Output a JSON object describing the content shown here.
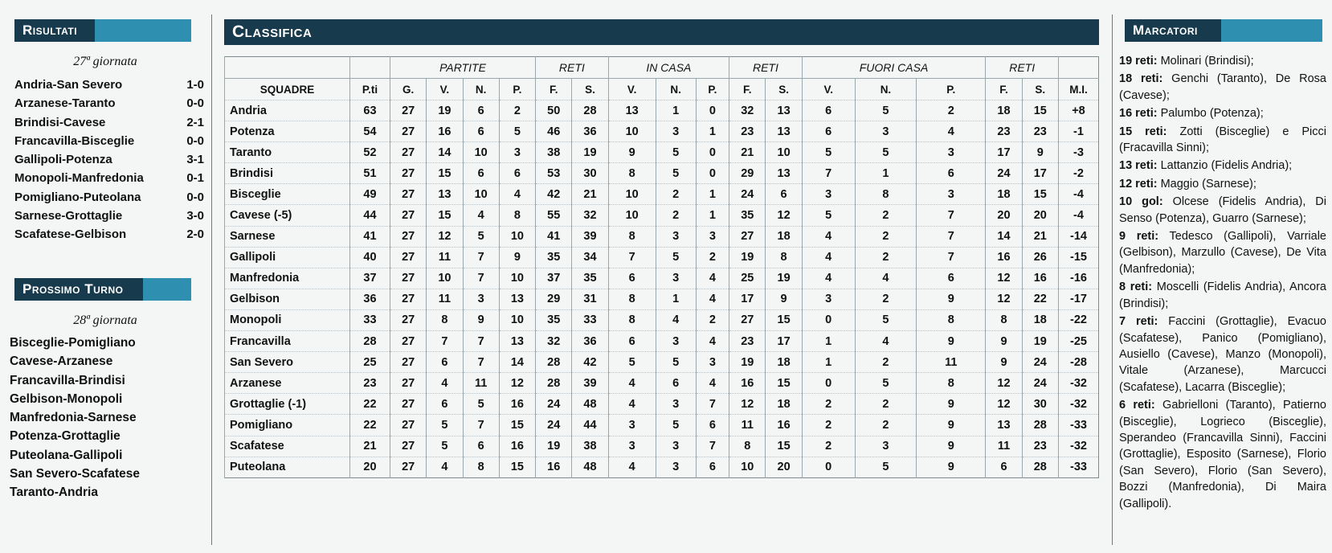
{
  "risultati": {
    "title": "Risultati",
    "giornata": "27ª giornata",
    "matches": [
      {
        "match": "Andria-San Severo",
        "score": "1-0"
      },
      {
        "match": "Arzanese-Taranto",
        "score": "0-0"
      },
      {
        "match": "Brindisi-Cavese",
        "score": "2-1"
      },
      {
        "match": "Francavilla-Bisceglie",
        "score": "0-0"
      },
      {
        "match": "Gallipoli-Potenza",
        "score": "3-1"
      },
      {
        "match": "Monopoli-Manfredonia",
        "score": "0-1"
      },
      {
        "match": "Pomigliano-Puteolana",
        "score": "0-0"
      },
      {
        "match": "Sarnese-Grottaglie",
        "score": "3-0"
      },
      {
        "match": "Scafatese-Gelbison",
        "score": "2-0"
      }
    ]
  },
  "prossimo_turno": {
    "title": "Prossimo Turno",
    "giornata": "28ª giornata",
    "matches": [
      "Bisceglie-Pomigliano",
      "Cavese-Arzanese",
      "Francavilla-Brindisi",
      "Gelbison-Monopoli",
      "Manfredonia-Sarnese",
      "Potenza-Grottaglie",
      "Puteolana-Gallipoli",
      "San Severo-Scafatese",
      "Taranto-Andria"
    ]
  },
  "classifica": {
    "title": "Classifica",
    "group_headers": [
      "PARTITE",
      "RETI",
      "IN CASA",
      "RETI",
      "FUORI CASA",
      "RETI"
    ],
    "columns": [
      "SQUADRE",
      "P.ti",
      "G.",
      "V.",
      "N.",
      "P.",
      "F.",
      "S.",
      "V.",
      "N.",
      "P.",
      "F.",
      "S.",
      "V.",
      "N.",
      "P.",
      "F.",
      "S.",
      "M.I."
    ],
    "rows": [
      [
        "Andria",
        "63",
        "27",
        "19",
        "6",
        "2",
        "50",
        "28",
        "13",
        "1",
        "0",
        "32",
        "13",
        "6",
        "5",
        "2",
        "18",
        "15",
        "+8"
      ],
      [
        "Potenza",
        "54",
        "27",
        "16",
        "6",
        "5",
        "46",
        "36",
        "10",
        "3",
        "1",
        "23",
        "13",
        "6",
        "3",
        "4",
        "23",
        "23",
        "-1"
      ],
      [
        "Taranto",
        "52",
        "27",
        "14",
        "10",
        "3",
        "38",
        "19",
        "9",
        "5",
        "0",
        "21",
        "10",
        "5",
        "5",
        "3",
        "17",
        "9",
        "-3"
      ],
      [
        "Brindisi",
        "51",
        "27",
        "15",
        "6",
        "6",
        "53",
        "30",
        "8",
        "5",
        "0",
        "29",
        "13",
        "7",
        "1",
        "6",
        "24",
        "17",
        "-2"
      ],
      [
        "Bisceglie",
        "49",
        "27",
        "13",
        "10",
        "4",
        "42",
        "21",
        "10",
        "2",
        "1",
        "24",
        "6",
        "3",
        "8",
        "3",
        "18",
        "15",
        "-4"
      ],
      [
        "Cavese (-5)",
        "44",
        "27",
        "15",
        "4",
        "8",
        "55",
        "32",
        "10",
        "2",
        "1",
        "35",
        "12",
        "5",
        "2",
        "7",
        "20",
        "20",
        "-4"
      ],
      [
        "Sarnese",
        "41",
        "27",
        "12",
        "5",
        "10",
        "41",
        "39",
        "8",
        "3",
        "3",
        "27",
        "18",
        "4",
        "2",
        "7",
        "14",
        "21",
        "-14"
      ],
      [
        "Gallipoli",
        "40",
        "27",
        "11",
        "7",
        "9",
        "35",
        "34",
        "7",
        "5",
        "2",
        "19",
        "8",
        "4",
        "2",
        "7",
        "16",
        "26",
        "-15"
      ],
      [
        "Manfredonia",
        "37",
        "27",
        "10",
        "7",
        "10",
        "37",
        "35",
        "6",
        "3",
        "4",
        "25",
        "19",
        "4",
        "4",
        "6",
        "12",
        "16",
        "-16"
      ],
      [
        "Gelbison",
        "36",
        "27",
        "11",
        "3",
        "13",
        "29",
        "31",
        "8",
        "1",
        "4",
        "17",
        "9",
        "3",
        "2",
        "9",
        "12",
        "22",
        "-17"
      ],
      [
        "Monopoli",
        "33",
        "27",
        "8",
        "9",
        "10",
        "35",
        "33",
        "8",
        "4",
        "2",
        "27",
        "15",
        "0",
        "5",
        "8",
        "8",
        "18",
        "-22"
      ],
      [
        "Francavilla",
        "28",
        "27",
        "7",
        "7",
        "13",
        "32",
        "36",
        "6",
        "3",
        "4",
        "23",
        "17",
        "1",
        "4",
        "9",
        "9",
        "19",
        "-25"
      ],
      [
        "San Severo",
        "25",
        "27",
        "6",
        "7",
        "14",
        "28",
        "42",
        "5",
        "5",
        "3",
        "19",
        "18",
        "1",
        "2",
        "11",
        "9",
        "24",
        "-28"
      ],
      [
        "Arzanese",
        "23",
        "27",
        "4",
        "11",
        "12",
        "28",
        "39",
        "4",
        "6",
        "4",
        "16",
        "15",
        "0",
        "5",
        "8",
        "12",
        "24",
        "-32"
      ],
      [
        "Grottaglie (-1)",
        "22",
        "27",
        "6",
        "5",
        "16",
        "24",
        "48",
        "4",
        "3",
        "7",
        "12",
        "18",
        "2",
        "2",
        "9",
        "12",
        "30",
        "-32"
      ],
      [
        "Pomigliano",
        "22",
        "27",
        "5",
        "7",
        "15",
        "24",
        "44",
        "3",
        "5",
        "6",
        "11",
        "16",
        "2",
        "2",
        "9",
        "13",
        "28",
        "-33"
      ],
      [
        "Scafatese",
        "21",
        "27",
        "5",
        "6",
        "16",
        "19",
        "38",
        "3",
        "3",
        "7",
        "8",
        "15",
        "2",
        "3",
        "9",
        "11",
        "23",
        "-32"
      ],
      [
        "Puteolana",
        "20",
        "27",
        "4",
        "8",
        "15",
        "16",
        "48",
        "4",
        "3",
        "6",
        "10",
        "20",
        "0",
        "5",
        "9",
        "6",
        "28",
        "-33"
      ]
    ]
  },
  "marcatori": {
    "title": "Marcatori",
    "entries": [
      {
        "label": "19 reti:",
        "text": " Molinari (Brindisi);"
      },
      {
        "label": "18 reti:",
        "text": " Genchi (Taranto), De Rosa (Cavese);"
      },
      {
        "label": "16 reti:",
        "text": " Palumbo (Potenza);"
      },
      {
        "label": "15 reti:",
        "text": " Zotti (Bisceglie) e Picci (Fracavilla Sinni);"
      },
      {
        "label": "13 reti:",
        "text": " Lattanzio (Fidelis Andria);"
      },
      {
        "label": "12 reti:",
        "text": " Maggio (Sarnese);"
      },
      {
        "label": "10 gol:",
        "text": " Olcese (Fidelis Andria), Di Senso (Potenza), Guarro (Sarnese);"
      },
      {
        "label": "9 reti:",
        "text": " Tedesco (Gallipoli), Varriale (Gelbison), Marzullo (Cavese), De Vita (Manfredonia);"
      },
      {
        "label": "8 reti:",
        "text": " Moscelli (Fidelis Andria), Ancora (Brindisi);"
      },
      {
        "label": "7 reti:",
        "text": " Faccini (Grottaglie), Evacuo (Scafatese), Panico (Pomigliano), Ausiello (Cavese), Manzo (Monopoli), Vitale (Arzanese), Marcucci (Scafatese), Lacarra (Bisceglie);"
      },
      {
        "label": "6 reti:",
        "text": " Gabrielloni (Taranto), Patierno (Bisceglie), Logrieco (Bisceglie), Sperandeo (Francavilla Sinni), Faccini (Grottaglie), Esposito (Sarnese), Florio (San Severo), Florio (San Severo), Bozzi (Manfredonia), Di Maira (Gallipoli)."
      }
    ]
  }
}
